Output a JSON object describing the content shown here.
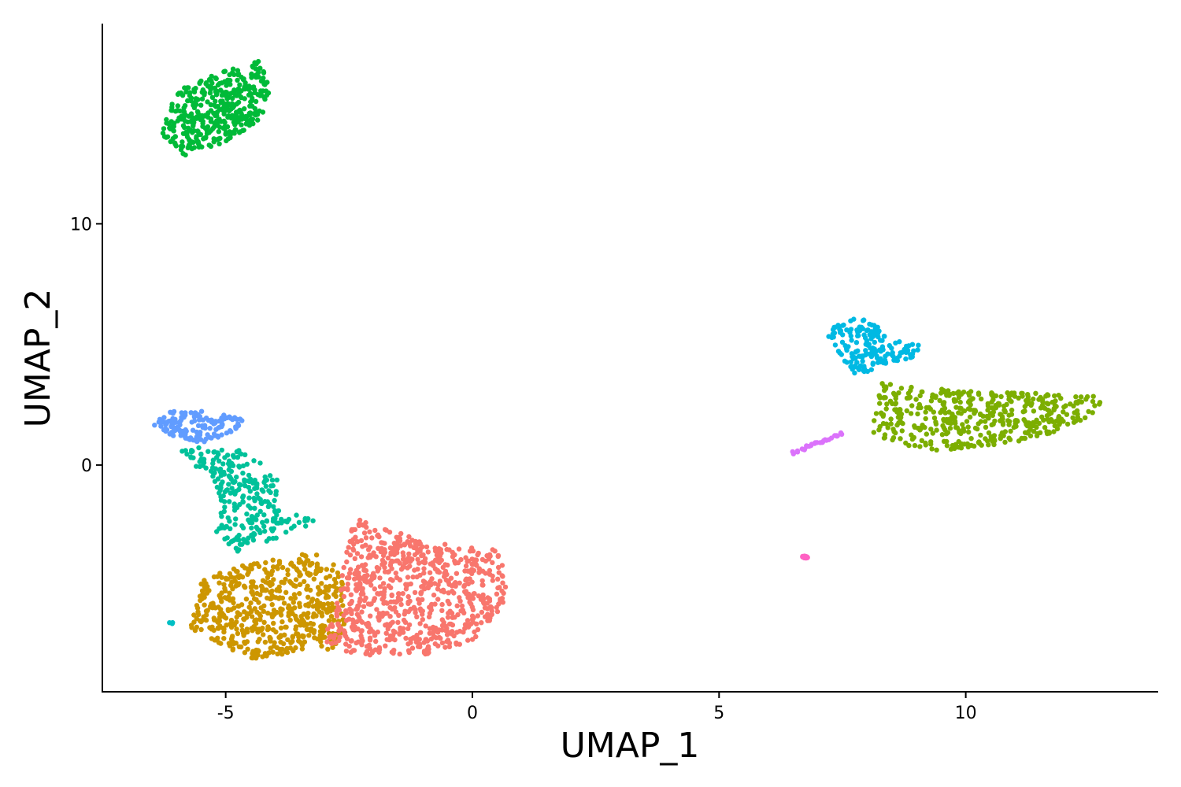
{
  "chart_data": {
    "type": "scatter",
    "title": "",
    "xlabel": "UMAP_1",
    "ylabel": "UMAP_2",
    "xlim": [
      -7.5,
      13.9
    ],
    "ylim": [
      -9.4,
      18.3
    ],
    "x_ticks": [
      {
        "value": -5,
        "label": "-5"
      },
      {
        "value": 0,
        "label": "0"
      },
      {
        "value": 5,
        "label": "5"
      },
      {
        "value": 10,
        "label": "10"
      }
    ],
    "y_ticks": [
      {
        "value": 0,
        "label": "0"
      },
      {
        "value": 10,
        "label": "10"
      }
    ],
    "grid": false,
    "legend": "none",
    "clusters": [
      {
        "color": "#00BA38",
        "points": 420,
        "shape": "polygon",
        "polygon": [
          [
            -6.3,
            13.6
          ],
          [
            -5.8,
            12.8
          ],
          [
            -5.0,
            13.4
          ],
          [
            -4.3,
            14.3
          ],
          [
            -4.1,
            15.5
          ],
          [
            -4.3,
            16.8
          ],
          [
            -5.0,
            16.4
          ],
          [
            -5.9,
            15.6
          ],
          [
            -6.2,
            14.6
          ]
        ]
      },
      {
        "color": "#619CFF",
        "points": 140,
        "shape": "polygon",
        "polygon": [
          [
            -6.5,
            1.6
          ],
          [
            -6.2,
            2.2
          ],
          [
            -5.6,
            2.3
          ],
          [
            -4.9,
            2.2
          ],
          [
            -4.6,
            1.9
          ],
          [
            -4.9,
            1.3
          ],
          [
            -5.5,
            0.9
          ],
          [
            -6.1,
            1.2
          ]
        ]
      },
      {
        "color": "#00C19A",
        "points": 260,
        "shape": "polygon",
        "polygon": [
          [
            -5.9,
            0.6
          ],
          [
            -5.3,
            0.8
          ],
          [
            -4.8,
            0.7
          ],
          [
            -4.3,
            0.2
          ],
          [
            -3.9,
            -0.7
          ],
          [
            -4.0,
            -1.8
          ],
          [
            -3.1,
            -2.3
          ],
          [
            -3.6,
            -2.8
          ],
          [
            -4.8,
            -3.6
          ],
          [
            -5.2,
            -2.9
          ],
          [
            -5.1,
            -1.3
          ],
          [
            -5.4,
            -0.3
          ],
          [
            -5.8,
            0.0
          ]
        ]
      },
      {
        "color": "#CD9600",
        "points": 560,
        "shape": "polygon",
        "polygon": [
          [
            -5.8,
            -6.7
          ],
          [
            -5.3,
            -7.2
          ],
          [
            -4.5,
            -8.1
          ],
          [
            -3.5,
            -7.7
          ],
          [
            -2.6,
            -7.6
          ],
          [
            -2.6,
            -5.0
          ],
          [
            -2.9,
            -3.7
          ],
          [
            -3.6,
            -3.7
          ],
          [
            -4.7,
            -4.1
          ],
          [
            -5.5,
            -4.8
          ]
        ]
      },
      {
        "color": "#F8766D",
        "points": 760,
        "shape": "polygon",
        "polygon": [
          [
            -3.1,
            -7.2
          ],
          [
            -2.4,
            -7.9
          ],
          [
            -1.0,
            -7.9
          ],
          [
            0.0,
            -7.4
          ],
          [
            0.7,
            -5.7
          ],
          [
            0.6,
            -3.5
          ],
          [
            -0.3,
            -3.4
          ],
          [
            -1.7,
            -2.7
          ],
          [
            -2.4,
            -2.2
          ],
          [
            -2.6,
            -4.1
          ],
          [
            -2.8,
            -6.2
          ]
        ]
      },
      {
        "color": "#00B9E3",
        "points": 170,
        "shape": "polygon",
        "polygon": [
          [
            7.2,
            5.4
          ],
          [
            7.5,
            6.1
          ],
          [
            8.0,
            6.1
          ],
          [
            8.5,
            5.2
          ],
          [
            9.1,
            5.0
          ],
          [
            9.0,
            4.5
          ],
          [
            8.3,
            4.1
          ],
          [
            7.8,
            3.7
          ],
          [
            7.5,
            4.3
          ]
        ]
      },
      {
        "color": "#7CAE00",
        "points": 450,
        "shape": "polygon",
        "polygon": [
          [
            8.0,
            1.3
          ],
          [
            8.3,
            3.4
          ],
          [
            9.2,
            3.2
          ],
          [
            10.4,
            3.0
          ],
          [
            11.5,
            3.0
          ],
          [
            12.6,
            2.9
          ],
          [
            12.9,
            2.8
          ],
          [
            12.5,
            2.0
          ],
          [
            11.8,
            1.2
          ],
          [
            10.5,
            0.8
          ],
          [
            9.4,
            0.6
          ],
          [
            8.6,
            0.9
          ]
        ]
      },
      {
        "color": "#DB72FB",
        "points": 30,
        "shape": "line",
        "from": [
          6.5,
          0.5
        ],
        "to": [
          7.5,
          1.3
        ]
      },
      {
        "color": "#FF61C3",
        "points": 10,
        "shape": "blob",
        "center": [
          6.75,
          -3.8
        ],
        "radius": [
          0.06,
          0.06
        ]
      },
      {
        "color": "#00BFC4",
        "points": 3,
        "shape": "blob",
        "center": [
          -6.1,
          -6.55
        ],
        "radius": [
          0.05,
          0.03
        ]
      }
    ]
  }
}
